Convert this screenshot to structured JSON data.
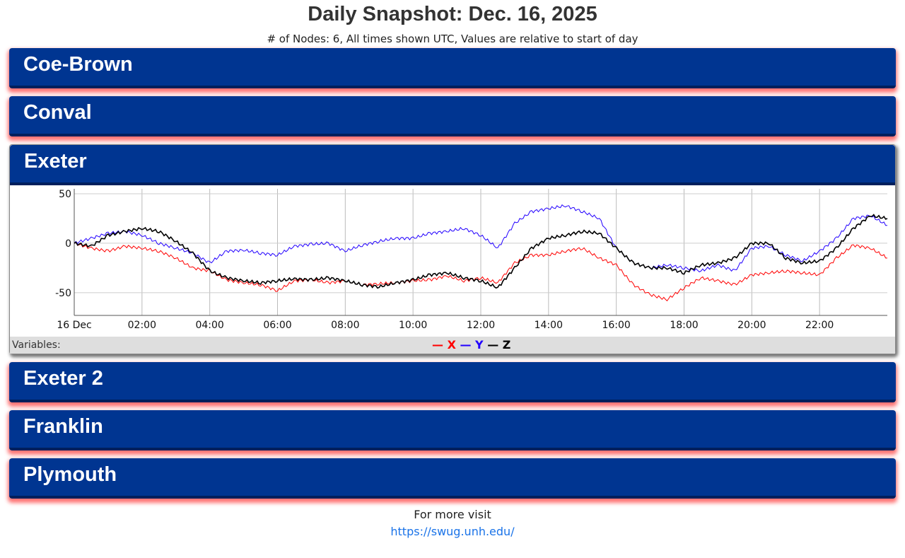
{
  "title": "Daily Snapshot: Dec. 16, 2025",
  "subtitle": "# of Nodes: 6, All times shown UTC, Values are relative to start of day",
  "panels": [
    {
      "name": "Coe-Brown",
      "expanded": false
    },
    {
      "name": "Conval",
      "expanded": false
    },
    {
      "name": "Exeter",
      "expanded": true
    },
    {
      "name": "Exeter 2",
      "expanded": false
    },
    {
      "name": "Franklin",
      "expanded": false
    },
    {
      "name": "Plymouth",
      "expanded": false
    }
  ],
  "legend": {
    "label": "Variables:",
    "items": [
      {
        "dash": "—",
        "name": "X",
        "color": "#ff0000"
      },
      {
        "dash": "—",
        "name": "Y",
        "color": "#2200ff"
      },
      {
        "dash": "—",
        "name": "Z",
        "color": "#000000"
      }
    ]
  },
  "footer": {
    "text": "For more visit",
    "link": "https://swug.unh.edu/"
  },
  "chart_data": {
    "type": "line",
    "title": "",
    "xlabel": "",
    "ylabel": "",
    "xlim": [
      0,
      24
    ],
    "ylim": [
      -73,
      55
    ],
    "grid": true,
    "x_ticks": [
      {
        "v": 0,
        "label": "16 Dec"
      },
      {
        "v": 2,
        "label": "02:00"
      },
      {
        "v": 4,
        "label": "04:00"
      },
      {
        "v": 6,
        "label": "06:00"
      },
      {
        "v": 8,
        "label": "08:00"
      },
      {
        "v": 10,
        "label": "10:00"
      },
      {
        "v": 12,
        "label": "12:00"
      },
      {
        "v": 14,
        "label": "14:00"
      },
      {
        "v": 16,
        "label": "16:00"
      },
      {
        "v": 18,
        "label": "18:00"
      },
      {
        "v": 20,
        "label": "20:00"
      },
      {
        "v": 22,
        "label": "22:00"
      }
    ],
    "y_ticks": [
      {
        "v": 50,
        "label": "50"
      },
      {
        "v": 0,
        "label": "0"
      },
      {
        "v": -50,
        "label": "-50"
      }
    ],
    "x": [
      0,
      0.5,
      1,
      1.5,
      2,
      2.5,
      3,
      3.5,
      4,
      4.5,
      5,
      5.5,
      6,
      6.5,
      7,
      7.5,
      8,
      8.5,
      9,
      9.5,
      10,
      10.5,
      11,
      11.5,
      12,
      12.5,
      13,
      13.5,
      14,
      14.5,
      15,
      15.5,
      16,
      16.5,
      17,
      17.5,
      18,
      18.5,
      19,
      19.5,
      20,
      20.5,
      21,
      21.5,
      22,
      22.5,
      23,
      23.5,
      24
    ],
    "series": [
      {
        "name": "X",
        "color": "#ff0000",
        "values": [
          0,
          -5,
          -8,
          -3,
          -5,
          -8,
          -15,
          -25,
          -28,
          -37,
          -40,
          -42,
          -48,
          -38,
          -37,
          -40,
          -38,
          -42,
          -41,
          -40,
          -38,
          -37,
          -33,
          -38,
          -35,
          -40,
          -20,
          -12,
          -12,
          -8,
          -5,
          -15,
          -22,
          -42,
          -52,
          -57,
          -45,
          -35,
          -38,
          -42,
          -32,
          -30,
          -28,
          -30,
          -32,
          -15,
          -2,
          -5,
          -15
        ]
      },
      {
        "name": "Y",
        "color": "#2200ff",
        "values": [
          0,
          5,
          10,
          12,
          8,
          0,
          -5,
          -10,
          -20,
          -8,
          -7,
          -10,
          -12,
          -3,
          -1,
          0,
          -8,
          -2,
          2,
          5,
          5,
          10,
          12,
          15,
          8,
          -5,
          20,
          32,
          35,
          38,
          32,
          25,
          -5,
          -20,
          -25,
          -22,
          -25,
          -28,
          -22,
          -28,
          -5,
          -3,
          -12,
          -18,
          -8,
          5,
          25,
          28,
          18
        ]
      },
      {
        "name": "Z",
        "color": "#000000",
        "values": [
          0,
          -3,
          8,
          12,
          15,
          12,
          2,
          -10,
          -28,
          -35,
          -38,
          -40,
          -38,
          -36,
          -37,
          -35,
          -38,
          -42,
          -44,
          -40,
          -37,
          -32,
          -30,
          -35,
          -38,
          -45,
          -25,
          -5,
          5,
          8,
          12,
          10,
          -5,
          -20,
          -25,
          -25,
          -30,
          -22,
          -20,
          -15,
          0,
          0,
          -15,
          -20,
          -18,
          -5,
          15,
          28,
          25
        ]
      }
    ]
  }
}
